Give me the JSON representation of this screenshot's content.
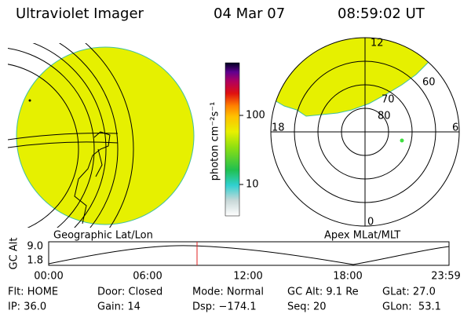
{
  "header": {
    "title": "Ultraviolet Imager",
    "date": "04 Mar 07",
    "time": "08:59:02 UT"
  },
  "colorbar": {
    "label": "photon cm⁻²s⁻¹",
    "ticks": [
      "100",
      "10"
    ]
  },
  "left_panel": {
    "label": "Geographic Lat/Lon"
  },
  "right_panel": {
    "label": "Apex MLat/MLT",
    "mlt_labels": [
      "12",
      "18",
      "6",
      "0"
    ],
    "mlat_labels": [
      "80",
      "70",
      "60"
    ]
  },
  "altitude_plot": {
    "ylabel": "GC Alt",
    "yticks": [
      "9.0",
      "1.8"
    ],
    "xticks": [
      "00:00",
      "06:00",
      "12:00",
      "18:00",
      "23:59"
    ]
  },
  "info": {
    "rows": [
      [
        "Flt: HOME",
        "Door: Closed",
        "Mode: Normal",
        "GC Alt: 9.1 Re",
        "GLat: 27.0"
      ],
      [
        "IP: 36.0",
        "Gain: 14",
        "Dsp: −174.1",
        "Seq: 20",
        "GLon:  53.1"
      ]
    ]
  }
}
